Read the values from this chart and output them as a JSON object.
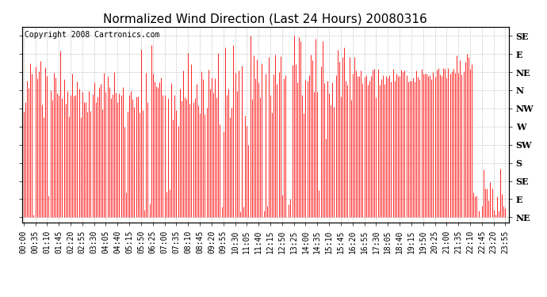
{
  "title": "Normalized Wind Direction (Last 24 Hours) 20080316",
  "copyright_text": "Copyright 2008 Cartronics.com",
  "line_color": "#ff0000",
  "bg_color": "#ffffff",
  "plot_bg_color": "#ffffff",
  "grid_color": "#c8c8c8",
  "ytick_labels_right": [
    "SE",
    "E",
    "NE",
    "N",
    "NW",
    "W",
    "SW",
    "S",
    "SE",
    "E",
    "NE"
  ],
  "ytick_values": [
    10,
    9,
    8,
    7,
    6,
    5,
    4,
    3,
    2,
    1,
    0
  ],
  "ylim": [
    -0.3,
    10.5
  ],
  "title_fontsize": 11,
  "tick_fontsize": 7,
  "copyright_fontsize": 7
}
